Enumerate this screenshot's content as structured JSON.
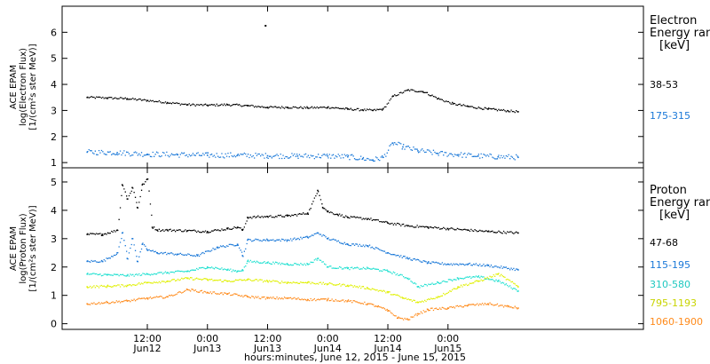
{
  "chart_data": [
    {
      "type": "scatter",
      "panel": "electron",
      "ylabel_lines": [
        "ACE EPAM",
        "log(Electron Flux)",
        "[1/(cm²s ster MeV)]"
      ],
      "ylim": [
        0.8,
        7.0
      ],
      "yticks": [
        1,
        2,
        3,
        4,
        5,
        6
      ],
      "legend": {
        "title_lines": [
          "Electron",
          "Energy range",
          "[keV]"
        ],
        "placement": "right"
      },
      "series": [
        {
          "name": "38-53",
          "color": "#000000",
          "x": [
            0,
            4,
            8,
            12,
            16,
            20,
            24,
            28,
            32,
            36,
            40,
            44,
            48,
            52,
            55,
            57,
            59,
            61,
            64,
            67,
            70,
            73,
            76,
            80,
            84,
            86
          ],
          "y": [
            3.5,
            3.48,
            3.45,
            3.38,
            3.3,
            3.22,
            3.2,
            3.22,
            3.18,
            3.12,
            3.12,
            3.1,
            3.12,
            3.05,
            3.02,
            3.0,
            3.05,
            3.55,
            3.78,
            3.72,
            3.45,
            3.25,
            3.15,
            3.05,
            2.98,
            2.95
          ]
        },
        {
          "name": "175-315",
          "color": "#1a78d8",
          "x": [
            0,
            6,
            12,
            18,
            24,
            30,
            36,
            42,
            48,
            52,
            55,
            57,
            59,
            61,
            63,
            66,
            70,
            74,
            78,
            82,
            86
          ],
          "y": [
            1.4,
            1.38,
            1.32,
            1.3,
            1.28,
            1.28,
            1.26,
            1.25,
            1.25,
            1.22,
            1.15,
            1.1,
            1.2,
            1.75,
            1.6,
            1.45,
            1.35,
            1.3,
            1.25,
            1.22,
            1.2
          ]
        }
      ],
      "outliers": [
        {
          "x": 35.6,
          "y": 6.25,
          "series": "38-53"
        }
      ]
    },
    {
      "type": "scatter",
      "panel": "proton",
      "ylabel_lines": [
        "ACE EPAM",
        "log(Proton Flux)",
        "[1/(cm²s ster MeV)]"
      ],
      "ylim": [
        -0.2,
        5.5
      ],
      "yticks": [
        0,
        1,
        2,
        3,
        4,
        5
      ],
      "legend": {
        "title_lines": [
          "Proton",
          "Energy range",
          "[keV]"
        ],
        "placement": "right"
      },
      "series": [
        {
          "name": "47-68",
          "color": "#000000",
          "x": [
            0,
            3,
            6,
            7,
            8,
            9,
            10,
            11,
            12,
            13,
            14,
            16,
            20,
            24,
            28,
            30,
            31,
            32,
            36,
            40,
            44,
            46,
            47,
            48,
            50,
            52,
            56,
            60,
            64,
            68,
            72,
            76,
            80,
            86
          ],
          "y": [
            3.15,
            3.15,
            3.3,
            4.9,
            4.4,
            4.8,
            4.1,
            4.9,
            5.1,
            3.4,
            3.3,
            3.3,
            3.28,
            3.25,
            3.35,
            3.4,
            3.3,
            3.75,
            3.78,
            3.8,
            3.9,
            4.7,
            4.1,
            3.95,
            3.85,
            3.75,
            3.7,
            3.55,
            3.45,
            3.4,
            3.35,
            3.3,
            3.25,
            3.2
          ]
        },
        {
          "name": "115-195",
          "color": "#1a78d8",
          "x": [
            0,
            3,
            6,
            7,
            8,
            9,
            10,
            11,
            12,
            14,
            18,
            22,
            26,
            30,
            31,
            32,
            36,
            40,
            44,
            46,
            48,
            52,
            56,
            60,
            64,
            68,
            72,
            76,
            80,
            86
          ],
          "y": [
            2.2,
            2.2,
            2.5,
            3.2,
            2.3,
            3.0,
            2.2,
            2.8,
            2.6,
            2.5,
            2.45,
            2.4,
            2.7,
            2.8,
            2.4,
            2.95,
            2.95,
            2.95,
            3.05,
            3.2,
            3.0,
            2.8,
            2.75,
            2.5,
            2.3,
            2.15,
            2.1,
            2.1,
            2.05,
            1.9
          ]
        },
        {
          "name": "310-580",
          "color": "#1ee0d0",
          "x": [
            0,
            4,
            8,
            12,
            16,
            20,
            24,
            28,
            30,
            31,
            32,
            36,
            40,
            44,
            46,
            48,
            52,
            56,
            60,
            64,
            66,
            70,
            74,
            78,
            82,
            86
          ],
          "y": [
            1.75,
            1.72,
            1.7,
            1.75,
            1.8,
            1.85,
            2.0,
            1.9,
            1.85,
            1.9,
            2.2,
            2.15,
            2.1,
            2.1,
            2.3,
            2.0,
            1.95,
            1.95,
            1.85,
            1.6,
            1.3,
            1.45,
            1.6,
            1.65,
            1.5,
            1.15
          ]
        },
        {
          "name": "795-1193",
          "color": "#e0f000",
          "x": [
            0,
            4,
            8,
            12,
            16,
            20,
            24,
            28,
            32,
            36,
            40,
            44,
            48,
            52,
            56,
            60,
            63,
            66,
            70,
            74,
            78,
            82,
            86
          ],
          "y": [
            1.3,
            1.32,
            1.35,
            1.45,
            1.5,
            1.6,
            1.55,
            1.5,
            1.55,
            1.5,
            1.45,
            1.45,
            1.4,
            1.35,
            1.25,
            1.1,
            0.9,
            0.75,
            0.95,
            1.3,
            1.5,
            1.75,
            1.3
          ]
        },
        {
          "name": "1060-1900",
          "color": "#ff8a1a",
          "x": [
            0,
            4,
            8,
            12,
            16,
            20,
            24,
            28,
            32,
            36,
            40,
            44,
            48,
            52,
            56,
            58,
            60,
            62,
            64,
            66,
            68,
            72,
            76,
            80,
            84,
            86
          ],
          "y": [
            0.7,
            0.75,
            0.8,
            0.9,
            0.95,
            1.2,
            1.1,
            1.05,
            0.95,
            0.9,
            0.9,
            0.85,
            0.85,
            0.8,
            0.7,
            0.6,
            0.45,
            0.2,
            0.15,
            0.35,
            0.5,
            0.55,
            0.65,
            0.7,
            0.6,
            0.55
          ]
        }
      ]
    }
  ],
  "x_axis": {
    "xlim": [
      -5,
      111
    ],
    "units": "hours from 0:00 Jun 12, 2015",
    "ticks": [
      {
        "x": 12,
        "line1": "12:00",
        "line2": "Jun12"
      },
      {
        "x": 24,
        "line1": "0:00",
        "line2": "Jun13"
      },
      {
        "x": 36,
        "line1": "12:00",
        "line2": "Jun13"
      },
      {
        "x": 48,
        "line1": "0:00",
        "line2": "Jun14"
      },
      {
        "x": 60,
        "line1": "12:00",
        "line2": "Jun14"
      },
      {
        "x": 72,
        "line1": "0:00",
        "line2": "Jun15"
      }
    ],
    "xlabel": "hours:minutes, June 12, 2015 - June 15, 2015"
  }
}
